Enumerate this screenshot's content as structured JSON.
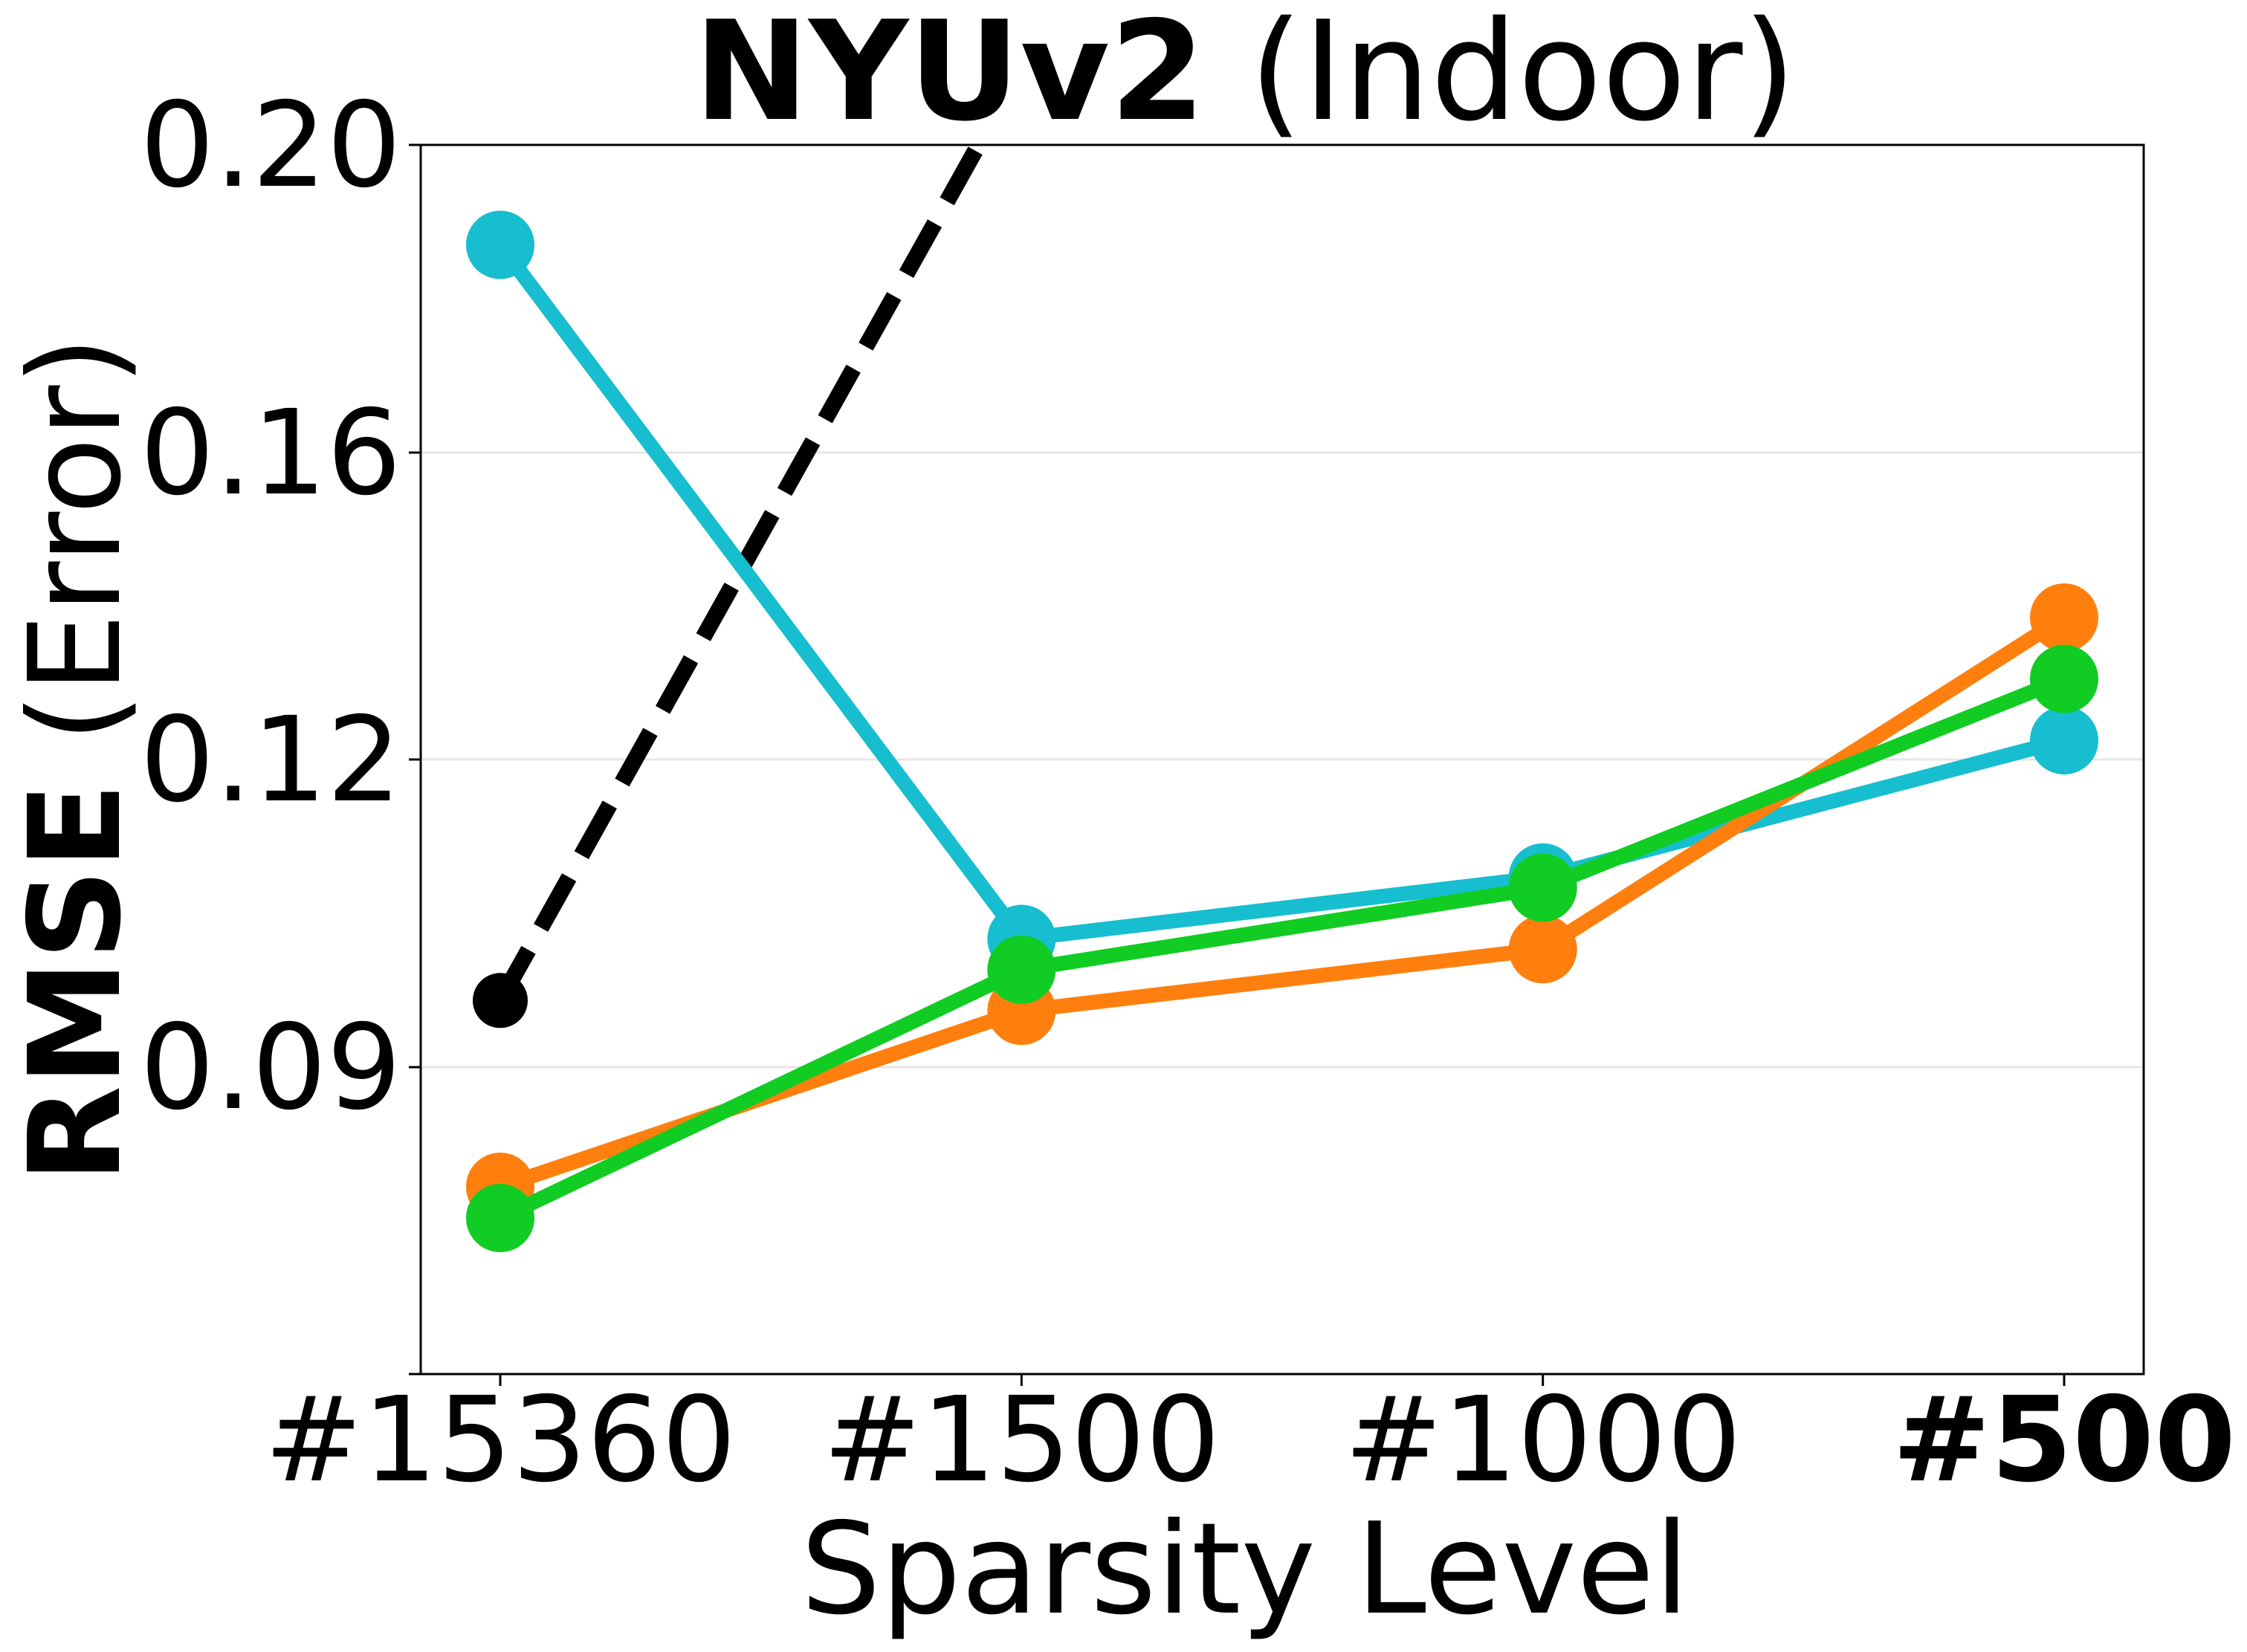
{
  "chart_data": {
    "type": "line",
    "title": {
      "bold": "NYUv2",
      "normal": " (Indoor)"
    },
    "xlabel": "Sparsity Level",
    "ylabel": {
      "bold": "RMSE",
      "normal": " (Error)"
    },
    "categories": [
      "#15360",
      "#1500",
      "#1000",
      "#500"
    ],
    "bold_categories": [
      "#500"
    ],
    "y_ticks": [
      {
        "value": 0.09,
        "label": "0.09"
      },
      {
        "value": 0.12,
        "label": "0.12"
      },
      {
        "value": 0.16,
        "label": "0.16"
      },
      {
        "value": 0.2,
        "label": "0.20"
      }
    ],
    "ylim": [
      0.0605,
      0.2
    ],
    "y_scale": "piecewise-linear (equal spacing between labeled ticks)",
    "grid": "horizontal, light gray",
    "legend": "none",
    "series": [
      {
        "color": "#000000",
        "style": "dashed",
        "values": [
          0.0965,
          0.21,
          null,
          null
        ]
      },
      {
        "color": "#17becf",
        "style": "solid",
        "values": [
          0.187,
          0.1025,
          0.1085,
          0.1225
        ]
      },
      {
        "color": "#ff7f0e",
        "style": "solid",
        "values": [
          0.0785,
          0.0955,
          0.1015,
          0.1385
        ]
      },
      {
        "color": "#11cc22",
        "style": "solid",
        "values": [
          0.0755,
          0.0995,
          0.1075,
          0.1305
        ]
      }
    ]
  }
}
